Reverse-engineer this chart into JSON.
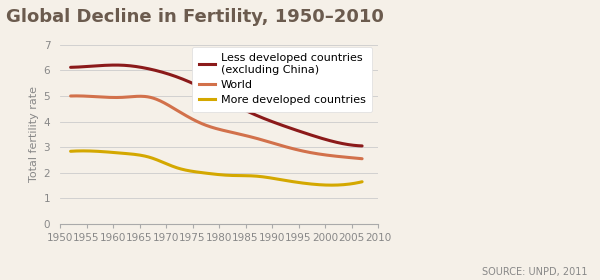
{
  "title": "Global Decline in Fertility, 1950–2010",
  "ylabel": "Total fertility rate",
  "source": "SOURCE: UNPD, 2011",
  "xlim": [
    1950,
    2010
  ],
  "ylim": [
    0,
    7
  ],
  "yticks": [
    0,
    1,
    2,
    3,
    4,
    5,
    6,
    7
  ],
  "xticks": [
    1950,
    1955,
    1960,
    1965,
    1970,
    1975,
    1980,
    1985,
    1990,
    1995,
    2000,
    2005,
    2010
  ],
  "background_color": "#f5f0e8",
  "title_color": "#6b5b4e",
  "tick_color": "#888888",
  "series": [
    {
      "label": "Less developed countries\n(excluding China)",
      "color": "#8B1A1A",
      "linewidth": 2.2,
      "x": [
        1952,
        1957,
        1962,
        1967,
        1972,
        1977,
        1982,
        1987,
        1992,
        1997,
        2002,
        2007
      ],
      "y": [
        6.12,
        6.18,
        6.2,
        6.05,
        5.75,
        5.3,
        4.75,
        4.25,
        3.85,
        3.5,
        3.2,
        3.05
      ]
    },
    {
      "label": "World",
      "color": "#D2714B",
      "linewidth": 2.2,
      "x": [
        1952,
        1957,
        1962,
        1967,
        1972,
        1977,
        1982,
        1987,
        1992,
        1997,
        2002,
        2007
      ],
      "y": [
        5.0,
        4.97,
        4.95,
        4.95,
        4.45,
        3.9,
        3.6,
        3.35,
        3.05,
        2.8,
        2.65,
        2.55
      ]
    },
    {
      "label": "More developed countries",
      "color": "#D4A800",
      "linewidth": 2.2,
      "x": [
        1952,
        1957,
        1962,
        1967,
        1972,
        1977,
        1982,
        1987,
        1992,
        1997,
        2002,
        2007
      ],
      "y": [
        2.84,
        2.84,
        2.76,
        2.6,
        2.2,
        2.0,
        1.9,
        1.87,
        1.72,
        1.57,
        1.52,
        1.65
      ]
    }
  ],
  "title_fontsize": 13,
  "axis_label_fontsize": 8,
  "tick_fontsize": 7.5,
  "legend_fontsize": 8,
  "source_fontsize": 7
}
